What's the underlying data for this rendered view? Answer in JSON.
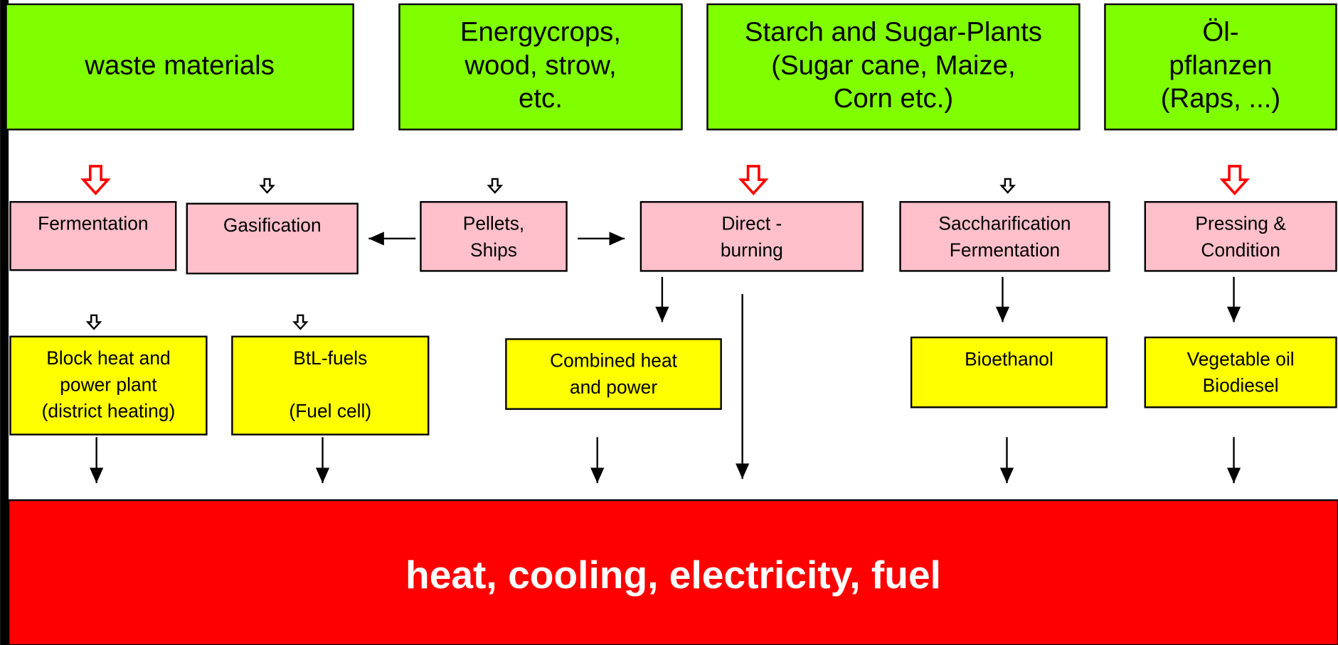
{
  "sources": [
    {
      "lines": [
        "waste materials"
      ]
    },
    {
      "lines": [
        "Energycrops,",
        "wood, strow,",
        "etc."
      ]
    },
    {
      "lines": [
        "Starch and Sugar-Plants",
        "(Sugar cane, Maize,",
        "Corn etc.)"
      ]
    },
    {
      "lines": [
        "Öl-",
        "pflanzen",
        "(Raps, ...)"
      ]
    }
  ],
  "processes": [
    {
      "lines": [
        "Fermentation"
      ]
    },
    {
      "lines": [
        "Gasification"
      ]
    },
    {
      "lines": [
        "Pellets,",
        "Ships"
      ]
    },
    {
      "lines": [
        "Direct -",
        "burning"
      ]
    },
    {
      "lines": [
        "Saccharification",
        "Fermentation"
      ]
    },
    {
      "lines": [
        "Pressing &",
        "Condition"
      ]
    }
  ],
  "products": [
    {
      "lines": [
        "Block heat and",
        "power plant",
        "(district heating)"
      ]
    },
    {
      "lines": [
        "BtL-fuels",
        "",
        "(Fuel cell)"
      ]
    },
    {
      "lines": [
        "Combined heat",
        "and power"
      ]
    },
    {
      "lines": [
        "Bioethanol"
      ]
    },
    {
      "lines": [
        "Vegetable oil",
        "Biodiesel"
      ]
    }
  ],
  "result": "heat, cooling, electricity,  fuel"
}
